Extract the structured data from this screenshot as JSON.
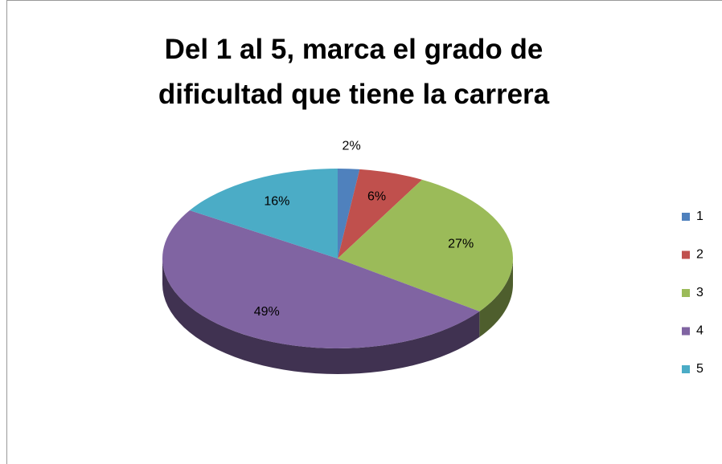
{
  "chart_data": {
    "type": "pie",
    "title": "Del 1 al 5, marca el grado de dificultad que tiene la carrera",
    "categories": [
      "1",
      "2",
      "3",
      "4",
      "5"
    ],
    "values": [
      2,
      6,
      27,
      49,
      16
    ],
    "value_labels": [
      "2%",
      "6%",
      "27%",
      "49%",
      "16%"
    ],
    "colors": [
      "#4f81bd",
      "#c0504d",
      "#9bbb59",
      "#8064a2",
      "#4bacc6"
    ],
    "legend": "right"
  }
}
